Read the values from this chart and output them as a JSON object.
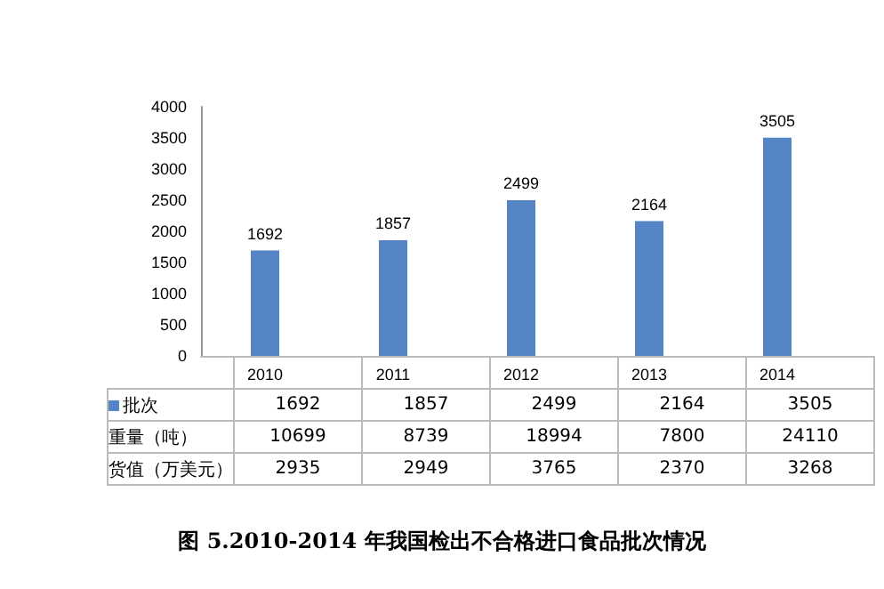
{
  "chart_data": {
    "type": "bar",
    "title": "图 5.2010-2014 年我国检出不合格进口食品批次情况",
    "categories": [
      "2010",
      "2011",
      "2012",
      "2013",
      "2014"
    ],
    "series": [
      {
        "name": "批次",
        "color": "#5585c5",
        "values": [
          1692,
          1857,
          2499,
          2164,
          3505
        ],
        "value_labels": [
          "1692",
          "1857",
          "2499",
          "2164",
          "3505"
        ]
      }
    ],
    "ylim": [
      0,
      4000
    ],
    "yticks": [
      0,
      500,
      1000,
      1500,
      2000,
      2500,
      3000,
      3500,
      4000
    ],
    "grid": false,
    "legend": "bottom",
    "annotations": [
      "1692",
      "1857",
      "2499",
      "2164",
      "3505",
      "重量（吨）",
      "10699",
      "8739",
      "18994",
      "7800",
      "24110",
      "货值（万美元）",
      "2935",
      "2949",
      "3765",
      "2370",
      "3268"
    ]
  }
}
